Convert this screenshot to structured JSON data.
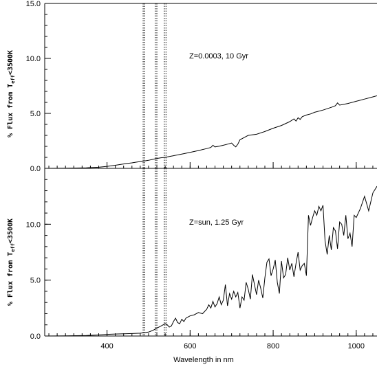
{
  "chart_data": {
    "type": "line",
    "xlabel": "Wavelength in nm",
    "xlim": [
      250,
      1050
    ],
    "x_ticks": [
      400,
      600,
      800,
      1000
    ],
    "x_minor_step": 20,
    "line_color": "#000000",
    "markers_nm": [
      487,
      491,
      516,
      520,
      538,
      542
    ],
    "panels": [
      {
        "ylabel": "% Flux from T_eff<3500K",
        "ylabel_main": "% Flux from T",
        "ylabel_sub": "eff",
        "ylabel_rest": "<3500K",
        "annotation": "Z=0.0003, 10 Gyr",
        "ylim": [
          0,
          15
        ],
        "y_ticks": [
          0,
          5,
          10,
          15
        ],
        "y_tick_labels": [
          "0.0",
          "5.0",
          "10.0",
          "15.0"
        ],
        "y_minor_step": 1,
        "series": [
          {
            "x": [
              250,
              300,
              350,
              380,
              400,
              420,
              440,
              450,
              460,
              470,
              480,
              490,
              500,
              510,
              520,
              530,
              540,
              550,
              560,
              580,
              600,
              620,
              640,
              650,
              655,
              660,
              670,
              680,
              690,
              700,
              705,
              710,
              715,
              720,
              730,
              740,
              760,
              780,
              800,
              820,
              840,
              850,
              855,
              860,
              865,
              870,
              880,
              890,
              900,
              920,
              940,
              950,
              955,
              960,
              980,
              1000,
              1020,
              1040,
              1050
            ],
            "y": [
              0,
              0.02,
              0.05,
              0.1,
              0.18,
              0.28,
              0.4,
              0.45,
              0.5,
              0.56,
              0.62,
              0.67,
              0.73,
              0.82,
              0.9,
              0.96,
              1.0,
              1.08,
              1.15,
              1.3,
              1.45,
              1.62,
              1.8,
              1.9,
              2.1,
              1.95,
              2.02,
              2.1,
              2.2,
              2.3,
              2.1,
              1.95,
              2.2,
              2.6,
              2.8,
              3.0,
              3.1,
              3.35,
              3.65,
              3.9,
              4.25,
              4.5,
              4.3,
              4.6,
              4.45,
              4.7,
              4.85,
              4.95,
              5.1,
              5.3,
              5.55,
              5.7,
              5.95,
              5.75,
              5.9,
              6.1,
              6.3,
              6.5,
              6.6
            ]
          }
        ]
      },
      {
        "ylabel": "% Flux from T_eff<3500K",
        "ylabel_main": "% Flux from T",
        "ylabel_sub": "eff",
        "ylabel_rest": "<3500K",
        "annotation": "Z=sun, 1.25 Gyr",
        "ylim": [
          0,
          15
        ],
        "y_ticks": [
          0,
          5,
          10
        ],
        "y_tick_labels": [
          "0.0",
          "5.0",
          "10.0"
        ],
        "y_minor_step": 1,
        "series": [
          {
            "x": [
              250,
              300,
              350,
              380,
              400,
              420,
              440,
              460,
              480,
              490,
              500,
              510,
              520,
              530,
              540,
              545,
              550,
              555,
              560,
              565,
              570,
              575,
              580,
              585,
              590,
              595,
              600,
              610,
              620,
              630,
              640,
              645,
              650,
              655,
              660,
              665,
              670,
              675,
              680,
              685,
              690,
              695,
              700,
              705,
              710,
              715,
              720,
              725,
              730,
              735,
              740,
              745,
              750,
              755,
              760,
              765,
              770,
              775,
              780,
              785,
              790,
              795,
              800,
              805,
              810,
              815,
              820,
              825,
              830,
              835,
              840,
              845,
              850,
              855,
              860,
              865,
              870,
              875,
              880,
              885,
              890,
              895,
              900,
              905,
              910,
              915,
              920,
              925,
              930,
              935,
              940,
              945,
              950,
              955,
              960,
              965,
              970,
              975,
              980,
              985,
              990,
              995,
              1000,
              1010,
              1020,
              1030,
              1040,
              1050
            ],
            "y": [
              0,
              0.02,
              0.05,
              0.1,
              0.15,
              0.18,
              0.2,
              0.22,
              0.25,
              0.3,
              0.35,
              0.5,
              0.7,
              0.9,
              1.1,
              1.0,
              0.8,
              0.9,
              1.3,
              1.6,
              1.2,
              1.1,
              1.5,
              1.3,
              1.6,
              1.7,
              1.8,
              1.9,
              2.1,
              2.0,
              2.4,
              2.8,
              2.5,
              3.1,
              2.6,
              2.9,
              3.5,
              2.8,
              3.2,
              4.6,
              2.7,
              3.8,
              3.3,
              4.0,
              3.5,
              3.9,
              2.5,
              3.5,
              3.2,
              4.8,
              4.2,
              3.3,
              5.5,
              4.6,
              3.7,
              5.0,
              4.3,
              3.4,
              5.2,
              6.6,
              6.9,
              5.4,
              6.0,
              6.8,
              4.8,
              3.8,
              6.7,
              5.2,
              5.5,
              7.0,
              5.9,
              6.5,
              5.3,
              6.5,
              7.5,
              5.9,
              6.3,
              6.5,
              5.4,
              10.8,
              9.9,
              10.6,
              11.2,
              10.8,
              11.6,
              11.2,
              11.7,
              8.5,
              7.3,
              9.0,
              7.7,
              9.7,
              9.4,
              7.8,
              10.2,
              10.0,
              9.0,
              10.8,
              8.7,
              9.2,
              8.0,
              10.8,
              10.6,
              11.4,
              12.5,
              11.2,
              12.8,
              13.4
            ]
          }
        ]
      }
    ]
  }
}
